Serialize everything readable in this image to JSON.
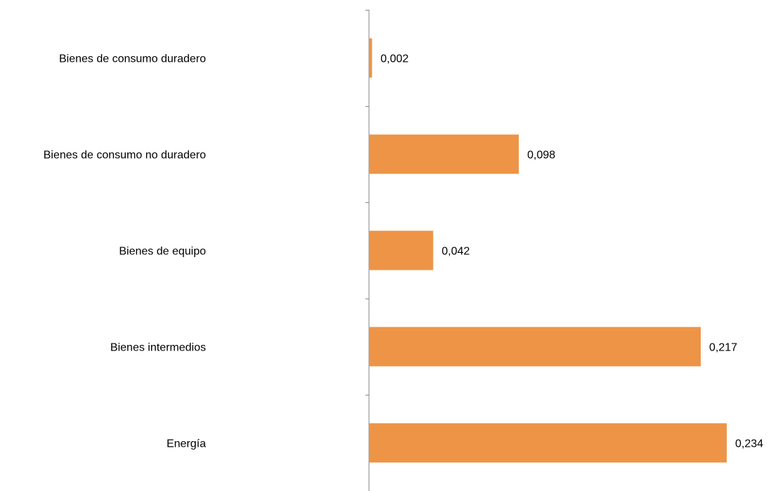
{
  "chart_data": {
    "type": "bar",
    "orientation": "horizontal",
    "categories": [
      "Bienes de consumo duradero",
      "Bienes de consumo no duradero",
      "Bienes de equipo",
      "Bienes intermedios",
      "Energía"
    ],
    "values": [
      0.002,
      0.098,
      0.042,
      0.217,
      0.234
    ],
    "value_labels": [
      "0,002",
      "0,098",
      "0,042",
      "0,217",
      "0,234"
    ],
    "title": "",
    "xlabel": "",
    "ylabel": "",
    "xlim": [
      0,
      0.234
    ],
    "grid": false,
    "legend": "none",
    "colors": {
      "bar": "#ED9447",
      "axis": "#868686",
      "text": "#000000"
    }
  }
}
